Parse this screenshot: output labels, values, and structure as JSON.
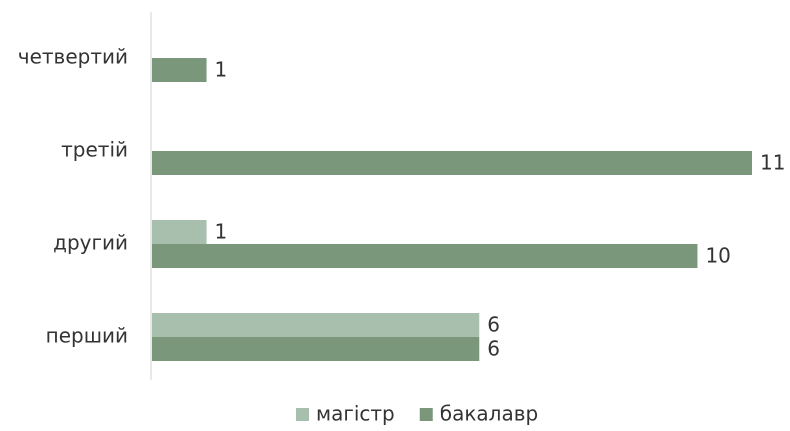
{
  "chart_data": {
    "type": "hbar",
    "categories": [
      "перший",
      "другий",
      "третій",
      "четвертий"
    ],
    "series": [
      {
        "name": "магістр",
        "color": "#a9bfae",
        "values": [
          6,
          1,
          null,
          null
        ]
      },
      {
        "name": "бакалавр",
        "color": "#7a977c",
        "values": [
          6,
          10,
          11,
          1
        ]
      }
    ],
    "xlim": [
      0,
      11
    ],
    "legend": "bottom"
  }
}
